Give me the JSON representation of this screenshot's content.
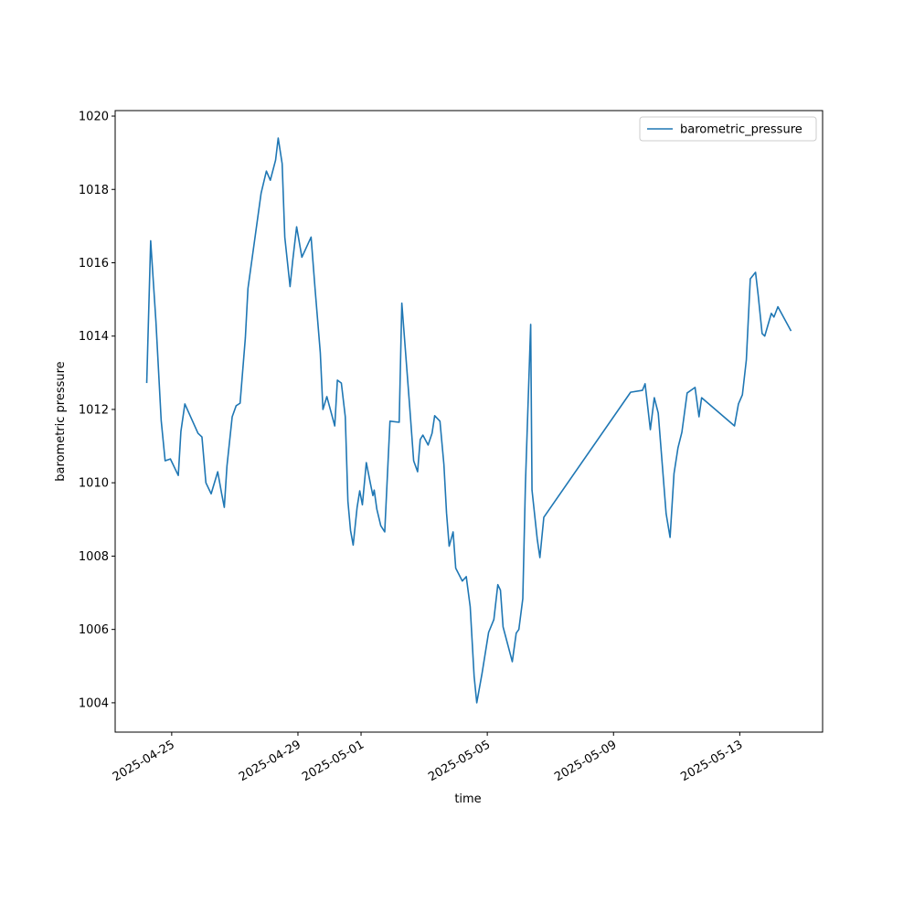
{
  "chart_data": {
    "type": "line",
    "xlabel": "time",
    "ylabel": "barometric pressure",
    "legend": "upper right",
    "xlim": [
      "2025-04-23T05:00",
      "2025-05-15T15:00"
    ],
    "xticks": [
      "2025-04-25",
      "2025-04-29",
      "2025-05-01",
      "2025-05-05",
      "2025-05-09",
      "2025-05-13"
    ],
    "ylim": [
      1003.2,
      1020.15
    ],
    "yticks": [
      1004,
      1006,
      1008,
      1010,
      1012,
      1014,
      1016,
      1018,
      1020
    ],
    "x": [
      "2025-04-24T05:00",
      "2025-04-24T08:00",
      "2025-04-24T12:00",
      "2025-04-24T16:00",
      "2025-04-24T19:00",
      "2025-04-24T23:00",
      "2025-04-25T01:00",
      "2025-04-25T05:00",
      "2025-04-25T07:00",
      "2025-04-25T10:00",
      "2025-04-25T20:00",
      "2025-04-25T23:00",
      "2025-04-26T02:00",
      "2025-04-26T06:00",
      "2025-04-26T11:00",
      "2025-04-26T14:00",
      "2025-04-26T16:00",
      "2025-04-26T18:00",
      "2025-04-26T22:00",
      "2025-04-27T01:00",
      "2025-04-27T04:00",
      "2025-04-27T08:00",
      "2025-04-27T10:00",
      "2025-04-27T20:00",
      "2025-04-28T00:00",
      "2025-04-28T03:00",
      "2025-04-28T07:00",
      "2025-04-28T09:00",
      "2025-04-28T12:00",
      "2025-04-28T14:00",
      "2025-04-28T18:00",
      "2025-04-28T20:00",
      "2025-04-28T23:00",
      "2025-04-29T03:00",
      "2025-04-29T10:00",
      "2025-04-29T13:00",
      "2025-04-29T17:00",
      "2025-04-29T19:00",
      "2025-04-29T22:00",
      "2025-04-30T04:00",
      "2025-04-30T06:00",
      "2025-04-30T09:00",
      "2025-04-30T12:00",
      "2025-04-30T14:00",
      "2025-04-30T16:00",
      "2025-04-30T18:00",
      "2025-04-30T21:00",
      "2025-04-30T23:00",
      "2025-05-01T01:00",
      "2025-05-01T04:00",
      "2025-05-01T07:00",
      "2025-05-01T09:00",
      "2025-05-01T10:00",
      "2025-05-01T12:00",
      "2025-05-01T15:00",
      "2025-05-01T18:00",
      "2025-05-01T22:00",
      "2025-05-02T05:00",
      "2025-05-02T07:00",
      "2025-05-02T13:00",
      "2025-05-02T16:00",
      "2025-05-02T19:00",
      "2025-05-02T21:00",
      "2025-05-02T23:00",
      "2025-05-03T03:00",
      "2025-05-03T06:00",
      "2025-05-03T08:00",
      "2025-05-03T12:00",
      "2025-05-03T15:00",
      "2025-05-03T17:00",
      "2025-05-03T19:00",
      "2025-05-03T22:00",
      "2025-05-04T00:00",
      "2025-05-04T05:00",
      "2025-05-04T08:00",
      "2025-05-04T11:00",
      "2025-05-04T14:00",
      "2025-05-04T16:00",
      "2025-05-04T20:00",
      "2025-05-05T01:00",
      "2025-05-05T05:00",
      "2025-05-05T08:00",
      "2025-05-05T10:00",
      "2025-05-05T12:00",
      "2025-05-05T19:00",
      "2025-05-05T22:00",
      "2025-05-06T00:00",
      "2025-05-06T03:00",
      "2025-05-06T05:00",
      "2025-05-06T09:00",
      "2025-05-06T10:00",
      "2025-05-06T14:00",
      "2025-05-06T16:00",
      "2025-05-06T19:00",
      "2025-05-09T13:00",
      "2025-05-09T22:00",
      "2025-05-10T00:00",
      "2025-05-10T04:00",
      "2025-05-10T07:00",
      "2025-05-10T10:00",
      "2025-05-10T16:00",
      "2025-05-10T19:00",
      "2025-05-10T22:00",
      "2025-05-11T01:00",
      "2025-05-11T04:00",
      "2025-05-11T08:00",
      "2025-05-11T14:00",
      "2025-05-11T17:00",
      "2025-05-11T19:00",
      "2025-05-12T20:00",
      "2025-05-12T23:00",
      "2025-05-13T02:00",
      "2025-05-13T05:00",
      "2025-05-13T08:00",
      "2025-05-13T12:00",
      "2025-05-13T14:00",
      "2025-05-13T17:00",
      "2025-05-13T19:00",
      "2025-05-14T00:00",
      "2025-05-14T02:00",
      "2025-05-14T05:00",
      "2025-05-14T15:00"
    ],
    "series": [
      {
        "name": "barometric_pressure",
        "color": "#1f77b4",
        "values": [
          1012.72,
          1016.6,
          1014.4,
          1011.7,
          1010.6,
          1010.65,
          1010.5,
          1010.2,
          1011.4,
          1012.15,
          1011.35,
          1011.25,
          1010.0,
          1009.7,
          1010.3,
          1009.7,
          1009.33,
          1010.45,
          1011.8,
          1012.1,
          1012.17,
          1013.95,
          1015.3,
          1017.9,
          1018.5,
          1018.25,
          1018.8,
          1019.4,
          1018.7,
          1016.7,
          1015.35,
          1016.05,
          1016.98,
          1016.15,
          1016.7,
          1015.3,
          1013.55,
          1012.0,
          1012.35,
          1011.55,
          1012.8,
          1012.72,
          1011.8,
          1009.5,
          1008.7,
          1008.3,
          1009.33,
          1009.78,
          1009.4,
          1010.55,
          1010.0,
          1009.65,
          1009.8,
          1009.28,
          1008.83,
          1008.66,
          1011.68,
          1011.65,
          1014.9,
          1012.07,
          1010.6,
          1010.3,
          1011.18,
          1011.3,
          1011.03,
          1011.35,
          1011.83,
          1011.68,
          1010.5,
          1009.18,
          1008.27,
          1008.66,
          1007.67,
          1007.32,
          1007.44,
          1006.62,
          1004.72,
          1004.0,
          1004.8,
          1005.92,
          1006.27,
          1007.22,
          1007.07,
          1006.07,
          1005.12,
          1005.9,
          1006.0,
          1006.84,
          1009.96,
          1014.32,
          1009.8,
          1008.46,
          1007.96,
          1009.06,
          1012.47,
          1012.52,
          1012.7,
          1011.45,
          1012.32,
          1011.9,
          1009.16,
          1008.51,
          1010.25,
          1010.95,
          1011.38,
          1012.45,
          1012.6,
          1011.8,
          1012.32,
          1011.55,
          1012.15,
          1012.4,
          1013.35,
          1015.56,
          1015.74,
          1015.12,
          1014.07,
          1014.0,
          1014.62,
          1014.52,
          1014.8,
          1014.14
        ]
      }
    ]
  }
}
